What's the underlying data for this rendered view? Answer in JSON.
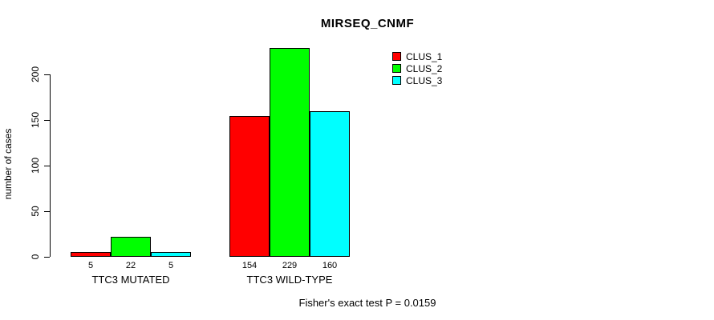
{
  "chart_data": {
    "type": "bar",
    "title": "MIRSEQ_CNMF",
    "xlabel": "",
    "ylabel": "number of cases",
    "categories": [
      "TTC3 MUTATED",
      "TTC3 WILD-TYPE"
    ],
    "series": [
      {
        "name": "CLUS_1",
        "color": "#ff0000",
        "values": [
          5,
          154
        ]
      },
      {
        "name": "CLUS_2",
        "color": "#00ff00",
        "values": [
          22,
          229
        ]
      },
      {
        "name": "CLUS_3",
        "color": "#00ffff",
        "values": [
          5,
          160
        ]
      }
    ],
    "bar_value_labels": [
      [
        "5",
        "22",
        "5"
      ],
      [
        "154",
        "229",
        "160"
      ]
    ],
    "yticks": [
      0,
      50,
      100,
      150,
      200
    ],
    "ylim": [
      0,
      229
    ],
    "grid": false,
    "legend_position": "top-right",
    "bar_border_color": "#000000",
    "annotation": "Fisher's exact test P = 0.0159"
  }
}
